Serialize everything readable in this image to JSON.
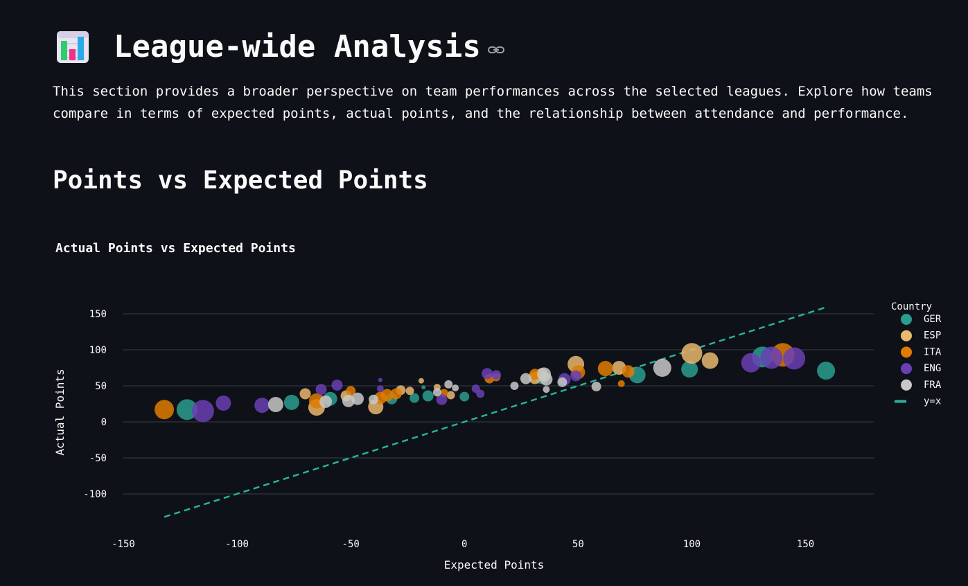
{
  "header": {
    "title": "League-wide Analysis",
    "icon": "bar-chart-icon"
  },
  "intro": "This section provides a broader perspective on team performances across the selected leagues. Explore how teams compare in terms of expected points, actual points, and the relationship between attendance and performance.",
  "section_title": "Points vs Expected Points",
  "colors": {
    "background": "#0e1117",
    "text": "#fafafa",
    "grid": "#3a3f48",
    "GER": "#2a9d8f",
    "ESP": "#e9b96e",
    "ITA": "#e07b00",
    "ENG": "#6a3fb5",
    "FRA": "#c8c8c8",
    "diagonal": "#2ab09a"
  },
  "chart_data": {
    "type": "scatter",
    "title": "Actual Points vs Expected Points",
    "xlabel": "Expected Points",
    "ylabel": "Actual Points",
    "xlim": [
      -150,
      180
    ],
    "ylim": [
      -150,
      170
    ],
    "xticks": [
      -150,
      -100,
      -50,
      0,
      50,
      100,
      150
    ],
    "yticks": [
      150,
      100,
      50,
      0,
      -50,
      -100
    ],
    "grid": true,
    "legend_title": "Country",
    "legend_position": "right",
    "legend": [
      "GER",
      "ESP",
      "ITA",
      "ENG",
      "FRA",
      "y=x"
    ],
    "reference_line": {
      "name": "y=x",
      "from": [
        -132,
        -132
      ],
      "to": [
        159,
        159
      ],
      "dashed": true
    },
    "series": [
      {
        "name": "GER",
        "points": [
          [
            -122,
            17,
            15
          ],
          [
            -76,
            27,
            11
          ],
          [
            -59,
            32,
            10
          ],
          [
            -22,
            33,
            7
          ],
          [
            -16,
            36,
            8
          ],
          [
            0,
            35,
            7
          ],
          [
            34,
            62,
            10
          ],
          [
            76,
            65,
            12
          ],
          [
            99,
            73,
            12
          ],
          [
            131,
            90,
            15
          ],
          [
            159,
            71,
            13
          ],
          [
            -32,
            32,
            8
          ],
          [
            -18,
            48,
            3
          ]
        ]
      },
      {
        "name": "ESP",
        "points": [
          [
            -65,
            20,
            12
          ],
          [
            -70,
            39,
            8
          ],
          [
            -39,
            21,
            11
          ],
          [
            -28,
            44,
            7
          ],
          [
            -24,
            43,
            6
          ],
          [
            -19,
            57,
            4
          ],
          [
            -12,
            48,
            5
          ],
          [
            -6,
            37,
            6
          ],
          [
            31,
            61,
            9
          ],
          [
            49,
            80,
            12
          ],
          [
            68,
            75,
            10
          ],
          [
            100,
            95,
            15
          ],
          [
            108,
            85,
            12
          ],
          [
            34,
            67,
            8
          ],
          [
            -52,
            36,
            8
          ]
        ]
      },
      {
        "name": "ITA",
        "points": [
          [
            -132,
            17,
            14
          ],
          [
            -65,
            29,
            11
          ],
          [
            -50,
            43,
            7
          ],
          [
            -37,
            33,
            9
          ],
          [
            -34,
            37,
            9
          ],
          [
            -30,
            39,
            8
          ],
          [
            -9,
            40,
            6
          ],
          [
            11,
            60,
            7
          ],
          [
            14,
            62,
            6
          ],
          [
            31,
            66,
            8
          ],
          [
            50,
            69,
            10
          ],
          [
            62,
            74,
            11
          ],
          [
            69,
            53,
            5
          ],
          [
            72,
            70,
            9
          ],
          [
            140,
            93,
            17
          ]
        ]
      },
      {
        "name": "ENG",
        "points": [
          [
            -115,
            15,
            16
          ],
          [
            -106,
            26,
            11
          ],
          [
            -89,
            23,
            11
          ],
          [
            -63,
            45,
            8
          ],
          [
            -56,
            51,
            8
          ],
          [
            -37,
            46,
            5
          ],
          [
            -37,
            58,
            3
          ],
          [
            -10,
            31,
            8
          ],
          [
            5,
            46,
            6
          ],
          [
            7,
            39,
            6
          ],
          [
            10,
            67,
            8
          ],
          [
            14,
            65,
            7
          ],
          [
            44,
            59,
            9
          ],
          [
            49,
            64,
            8
          ],
          [
            126,
            82,
            14
          ],
          [
            135,
            89,
            16
          ],
          [
            145,
            88,
            16
          ]
        ]
      },
      {
        "name": "FRA",
        "points": [
          [
            -83,
            24,
            11
          ],
          [
            -61,
            28,
            9
          ],
          [
            -51,
            29,
            9
          ],
          [
            -47,
            32,
            9
          ],
          [
            -40,
            31,
            7
          ],
          [
            -12,
            41,
            6
          ],
          [
            -7,
            52,
            6
          ],
          [
            -4,
            47,
            5
          ],
          [
            22,
            50,
            6
          ],
          [
            27,
            60,
            8
          ],
          [
            35,
            66,
            10
          ],
          [
            36,
            59,
            9
          ],
          [
            36,
            45,
            5
          ],
          [
            43,
            55,
            7
          ],
          [
            58,
            49,
            7
          ],
          [
            87,
            75,
            13
          ]
        ]
      }
    ]
  }
}
